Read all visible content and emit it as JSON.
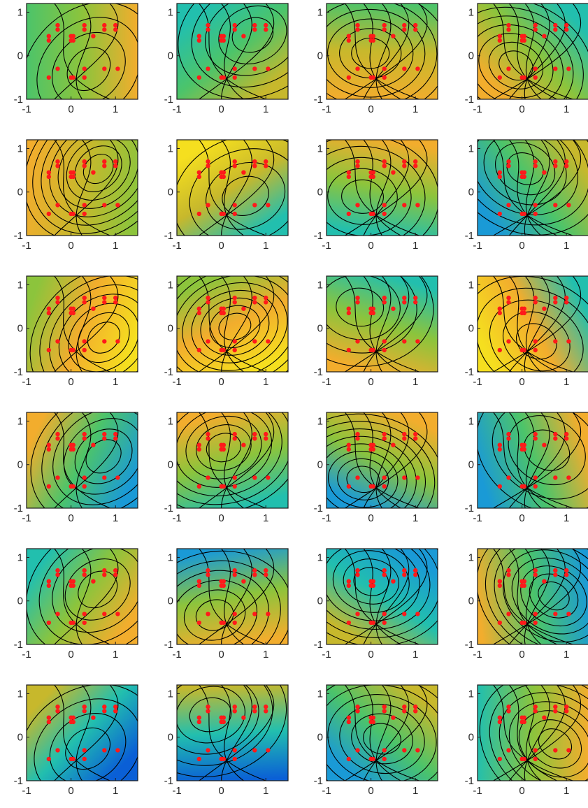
{
  "figure": {
    "xlim": [
      -1,
      1.5
    ],
    "ylim": [
      -1,
      1.2
    ],
    "x_ticks": [
      "-1",
      "0",
      "1"
    ],
    "y_ticks": [
      "-1",
      "0",
      "1"
    ],
    "colormap": [
      "#0a5fd6",
      "#1a9ad6",
      "#22bfae",
      "#4cc46a",
      "#8cc43c",
      "#c7b82c",
      "#f2ad2d",
      "#f5df1f"
    ],
    "marker_color": "#ff1a1a",
    "contour_color": "#000000"
  },
  "chart_data": {
    "type": "contour",
    "grid": "6 rows x 4 columns",
    "xlim": [
      -1,
      1.5
    ],
    "ylim": [
      -1,
      1.2
    ],
    "marker_points": [
      [
        -0.5,
        0.45
      ],
      [
        -0.5,
        0.35
      ],
      [
        -0.3,
        0.7
      ],
      [
        -0.3,
        0.6
      ],
      [
        0.0,
        0.45
      ],
      [
        0.0,
        0.35
      ],
      [
        0.05,
        0.45
      ],
      [
        0.05,
        0.35
      ],
      [
        0.3,
        0.7
      ],
      [
        0.3,
        0.6
      ],
      [
        0.5,
        0.45
      ],
      [
        0.75,
        0.7
      ],
      [
        0.75,
        0.6
      ],
      [
        1.0,
        0.7
      ],
      [
        1.0,
        0.6
      ],
      [
        -0.5,
        -0.5
      ],
      [
        -0.3,
        -0.3
      ],
      [
        0.0,
        -0.5
      ],
      [
        0.05,
        -0.5
      ],
      [
        0.3,
        -0.3
      ],
      [
        0.3,
        -0.5
      ],
      [
        0.75,
        -0.3
      ],
      [
        1.05,
        -0.3
      ]
    ],
    "panels": [
      {
        "row": 1,
        "col": 1
      },
      {
        "row": 1,
        "col": 2
      },
      {
        "row": 1,
        "col": 3
      },
      {
        "row": 1,
        "col": 4
      },
      {
        "row": 2,
        "col": 1
      },
      {
        "row": 2,
        "col": 2
      },
      {
        "row": 2,
        "col": 3
      },
      {
        "row": 2,
        "col": 4
      },
      {
        "row": 3,
        "col": 1
      },
      {
        "row": 3,
        "col": 2
      },
      {
        "row": 3,
        "col": 3
      },
      {
        "row": 3,
        "col": 4
      },
      {
        "row": 4,
        "col": 1
      },
      {
        "row": 4,
        "col": 2
      },
      {
        "row": 4,
        "col": 3
      },
      {
        "row": 4,
        "col": 4
      },
      {
        "row": 5,
        "col": 1
      },
      {
        "row": 5,
        "col": 2
      },
      {
        "row": 5,
        "col": 3
      },
      {
        "row": 5,
        "col": 4
      },
      {
        "row": 6,
        "col": 1
      },
      {
        "row": 6,
        "col": 2
      },
      {
        "row": 6,
        "col": 3
      },
      {
        "row": 6,
        "col": 4
      }
    ]
  }
}
